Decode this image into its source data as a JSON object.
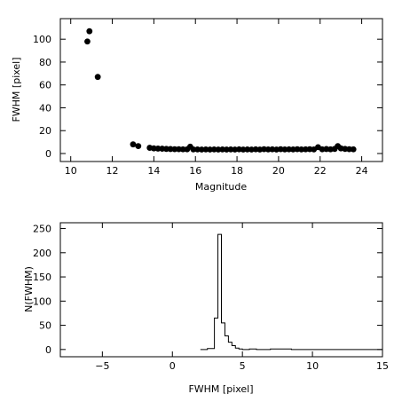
{
  "chart_data": [
    {
      "type": "scatter",
      "xlabel": "Magnitude",
      "ylabel": "FWHM [pixel]",
      "xlim": [
        9.5,
        25
      ],
      "ylim": [
        -7,
        118
      ],
      "xticks": [
        10,
        12,
        14,
        16,
        18,
        20,
        22,
        24
      ],
      "xtick_labels": [
        "10",
        "12",
        "14",
        "16",
        "18",
        "20",
        "22",
        "24"
      ],
      "yticks": [
        0,
        20,
        40,
        60,
        80,
        100
      ],
      "ytick_labels": [
        "0",
        "20",
        "40",
        "60",
        "80",
        "100"
      ],
      "grid": false,
      "marker_color": "#000000",
      "points": [
        {
          "x": 10.8,
          "y": 98
        },
        {
          "x": 10.9,
          "y": 107
        },
        {
          "x": 11.3,
          "y": 67
        },
        {
          "x": 13.0,
          "y": 8
        },
        {
          "x": 13.25,
          "y": 6.5
        },
        {
          "x": 13.8,
          "y": 5
        },
        {
          "x": 14.0,
          "y": 4.5
        },
        {
          "x": 14.2,
          "y": 4.3
        },
        {
          "x": 14.4,
          "y": 4.2
        },
        {
          "x": 14.6,
          "y": 4.0
        },
        {
          "x": 14.8,
          "y": 3.9
        },
        {
          "x": 15.0,
          "y": 3.8
        },
        {
          "x": 15.2,
          "y": 3.8
        },
        {
          "x": 15.4,
          "y": 3.7
        },
        {
          "x": 15.6,
          "y": 3.7
        },
        {
          "x": 15.75,
          "y": 6
        },
        {
          "x": 15.9,
          "y": 3.6
        },
        {
          "x": 16.1,
          "y": 3.6
        },
        {
          "x": 16.3,
          "y": 3.5
        },
        {
          "x": 16.5,
          "y": 3.6
        },
        {
          "x": 16.7,
          "y": 3.5
        },
        {
          "x": 16.9,
          "y": 3.6
        },
        {
          "x": 17.1,
          "y": 3.5
        },
        {
          "x": 17.3,
          "y": 3.6
        },
        {
          "x": 17.5,
          "y": 3.5
        },
        {
          "x": 17.7,
          "y": 3.6
        },
        {
          "x": 17.9,
          "y": 3.5
        },
        {
          "x": 18.1,
          "y": 3.7
        },
        {
          "x": 18.3,
          "y": 3.5
        },
        {
          "x": 18.5,
          "y": 3.6
        },
        {
          "x": 18.7,
          "y": 3.5
        },
        {
          "x": 18.9,
          "y": 3.7
        },
        {
          "x": 19.1,
          "y": 3.5
        },
        {
          "x": 19.3,
          "y": 3.8
        },
        {
          "x": 19.5,
          "y": 3.6
        },
        {
          "x": 19.7,
          "y": 3.7
        },
        {
          "x": 19.9,
          "y": 3.5
        },
        {
          "x": 20.1,
          "y": 3.8
        },
        {
          "x": 20.3,
          "y": 3.6
        },
        {
          "x": 20.5,
          "y": 3.7
        },
        {
          "x": 20.7,
          "y": 3.6
        },
        {
          "x": 20.9,
          "y": 3.8
        },
        {
          "x": 21.1,
          "y": 3.6
        },
        {
          "x": 21.3,
          "y": 3.7
        },
        {
          "x": 21.5,
          "y": 3.8
        },
        {
          "x": 21.7,
          "y": 3.6
        },
        {
          "x": 21.9,
          "y": 5.5
        },
        {
          "x": 22.1,
          "y": 3.7
        },
        {
          "x": 22.3,
          "y": 3.9
        },
        {
          "x": 22.5,
          "y": 3.7
        },
        {
          "x": 22.7,
          "y": 4.0
        },
        {
          "x": 22.85,
          "y": 6.5
        },
        {
          "x": 23.0,
          "y": 4.5
        },
        {
          "x": 23.2,
          "y": 4.0
        },
        {
          "x": 23.4,
          "y": 3.8
        },
        {
          "x": 23.6,
          "y": 3.7
        }
      ]
    },
    {
      "type": "histogram",
      "xlabel": "FWHM [pixel]",
      "ylabel": "N(FWHM)",
      "xlim": [
        -8,
        15
      ],
      "ylim": [
        -15,
        262
      ],
      "xticks": [
        -5,
        0,
        5,
        10,
        15
      ],
      "xtick_labels": [
        "−5",
        "0",
        "5",
        "10",
        "15"
      ],
      "yticks": [
        0,
        50,
        100,
        150,
        200,
        250
      ],
      "ytick_labels": [
        "0",
        "50",
        "100",
        "150",
        "200",
        "250"
      ],
      "grid": false,
      "line_color": "#000000",
      "bin_edges": [
        2.0,
        2.5,
        3.0,
        3.25,
        3.5,
        3.75,
        4.0,
        4.25,
        4.5,
        4.75,
        5.0,
        5.5,
        6.0,
        7.0,
        8.5,
        9.0,
        15.0
      ],
      "counts": [
        0,
        2,
        65,
        238,
        55,
        28,
        15,
        8,
        3,
        1,
        0,
        1,
        0,
        1,
        0,
        0
      ]
    }
  ]
}
